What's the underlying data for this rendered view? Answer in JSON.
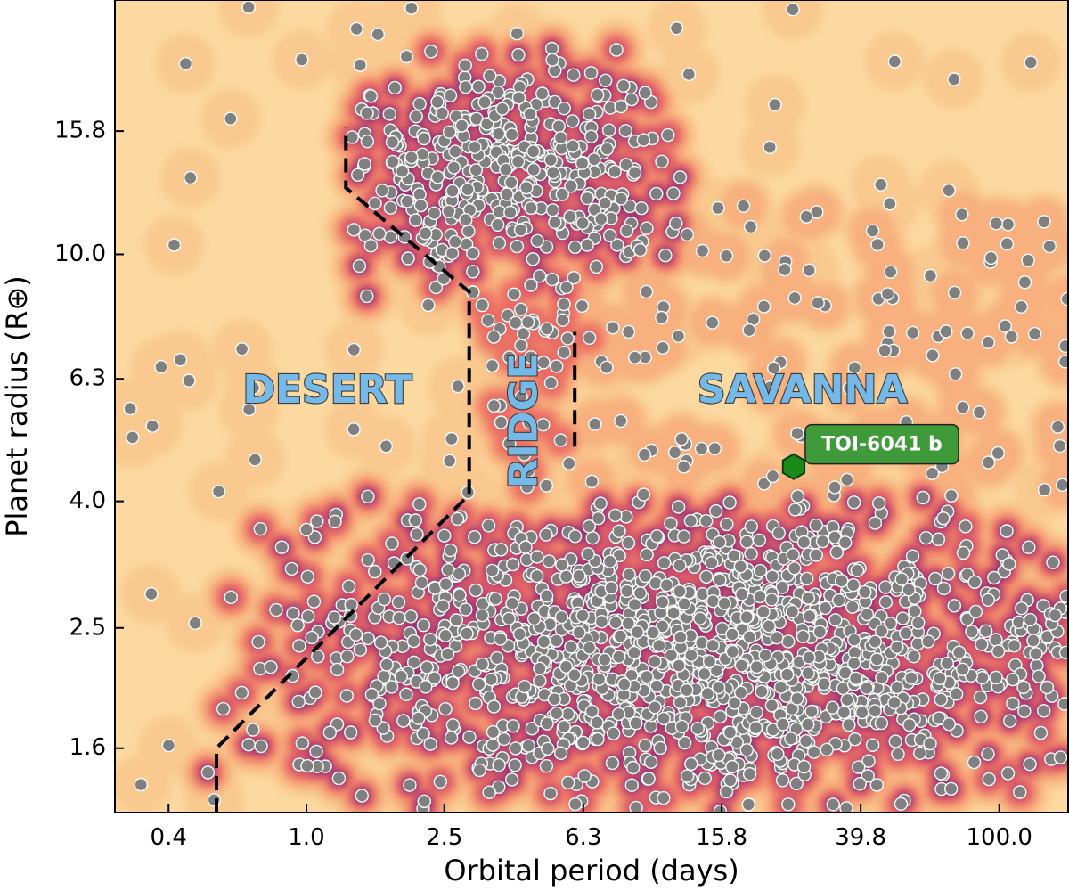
{
  "chart_data": {
    "type": "scatter",
    "xlabel": "Orbital period (days)",
    "ylabel": "Planet radius (R⊕)",
    "x_scale": "log",
    "y_scale": "log",
    "xlim": [
      0.28,
      158
    ],
    "ylim": [
      1.26,
      25.7
    ],
    "x_ticks": [
      0.4,
      1.0,
      2.5,
      6.3,
      15.8,
      39.8,
      100.0
    ],
    "x_tick_labels": [
      "0.4",
      "1.0",
      "2.5",
      "6.3",
      "15.8",
      "39.8",
      "100.0"
    ],
    "y_ticks": [
      1.6,
      2.5,
      4.0,
      6.3,
      10.0,
      15.8
    ],
    "y_tick_labels": [
      "1.6",
      "2.5",
      "4.0",
      "6.3",
      "10.0",
      "15.8"
    ],
    "colors": {
      "background": "#fbd9a0",
      "density_levels": [
        "#f9c98f",
        "#f7b07e",
        "#f38c6e",
        "#e96a63",
        "#c64c6e",
        "#8e2f7a",
        "#5a1a6b"
      ],
      "point_fill": "#808080",
      "point_edge": "#ffffff",
      "boundary_line": "#000000",
      "region_label_fill": "#74b9e8",
      "highlight_fill": "#1a8a1a",
      "callout_fill": "#3f9a3a"
    },
    "regions": [
      {
        "name": "DESERT",
        "x": 1.15,
        "y": 6.0,
        "orientation": "horizontal"
      },
      {
        "name": "RIDGE",
        "x": 4.3,
        "y": 5.4,
        "orientation": "vertical"
      },
      {
        "name": "SAVANNA",
        "x": 27.0,
        "y": 6.0,
        "orientation": "horizontal"
      }
    ],
    "desert_boundary": {
      "x": [
        0.55,
        0.55,
        2.95,
        2.95,
        1.3,
        1.3
      ],
      "y": [
        1.26,
        1.6,
        4.1,
        8.7,
        12.8,
        16.0
      ]
    },
    "ridge_boundary": {
      "x": [
        5.95,
        5.95
      ],
      "y": [
        4.9,
        7.5
      ]
    },
    "clusters": [
      {
        "id": "hot-jupiters",
        "n": 380,
        "x_range": [
          1.3,
          12.0
        ],
        "y_range": [
          8.5,
          21.5
        ],
        "center": [
          3.8,
          14.0
        ],
        "spread": [
          0.5,
          0.17
        ],
        "level": 6
      },
      {
        "id": "small-planets",
        "n": 1350,
        "x_range": [
          0.5,
          158.0
        ],
        "y_range": [
          1.26,
          4.1
        ],
        "center": [
          14.0,
          2.3
        ],
        "spread": [
          1.05,
          0.21
        ],
        "level": 6
      },
      {
        "id": "ridge-bridge",
        "n": 40,
        "x_range": [
          3.1,
          7.0
        ],
        "y_range": [
          4.2,
          9.5
        ],
        "center": [
          4.4,
          6.5
        ],
        "spread": [
          0.2,
          0.2
        ],
        "level": 3
      },
      {
        "id": "savanna-upper",
        "n": 100,
        "x_range": [
          6.0,
          158.0
        ],
        "y_range": [
          4.0,
          12.0
        ],
        "center": [
          30.0,
          6.5
        ],
        "spread": [
          1.2,
          0.35
        ],
        "level": 1
      },
      {
        "id": "scattered",
        "n": 120,
        "x_range": [
          0.3,
          158.0
        ],
        "y_range": [
          1.26,
          25.7
        ],
        "center": [
          5.0,
          5.0
        ],
        "spread": [
          1.4,
          0.6
        ],
        "level": 0
      }
    ],
    "highlight": {
      "name": "TOI-6041 b",
      "x": 25.5,
      "y": 4.55,
      "marker": "hexagon"
    }
  }
}
